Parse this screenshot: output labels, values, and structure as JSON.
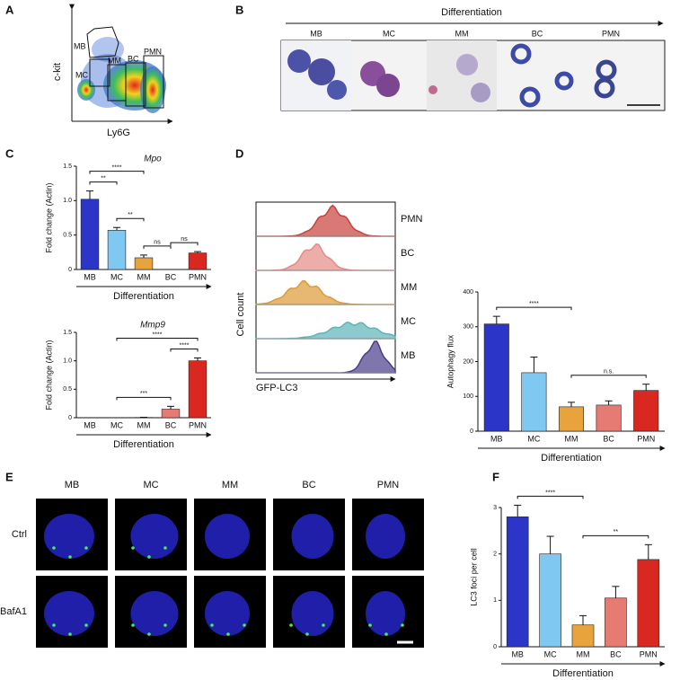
{
  "panel_labels": [
    "A",
    "B",
    "C",
    "D",
    "E",
    "F"
  ],
  "flow": {
    "y_label": "c-kit",
    "x_label": "Ly6G",
    "gates": [
      "MB",
      "MC",
      "MM",
      "BC",
      "PMN"
    ]
  },
  "micrographs": {
    "arrow_label": "Differentiation",
    "cells": [
      "MB",
      "MC",
      "MM",
      "BC",
      "PMN"
    ]
  },
  "histograms": {
    "y_label": "Cell count",
    "x_label": "GFP-LC3",
    "populations": [
      "PMN",
      "BC",
      "MM",
      "MC",
      "MB"
    ],
    "colors": [
      "#c9403a",
      "#e58a84",
      "#dc9a35",
      "#5cb4b8",
      "#4a3c8c"
    ]
  },
  "microscopy": {
    "columns": [
      "MB",
      "MC",
      "MM",
      "BC",
      "PMN"
    ],
    "rows": [
      "Ctrl",
      "BafA1"
    ]
  },
  "chart_data": [
    {
      "type": "bar",
      "title": "Mpo",
      "y_label": "Fold change (Actin)",
      "x_label": "Differentiation",
      "categories": [
        "MB",
        "MC",
        "MM",
        "BC",
        "PMN"
      ],
      "values": [
        1.02,
        0.57,
        0.17,
        0,
        0.24
      ],
      "errors": [
        0.12,
        0.04,
        0.04,
        0,
        0.02
      ],
      "colors": [
        "#2b35c7",
        "#7ec8f2",
        "#e8a33c",
        "#e57b73",
        "#d9281f"
      ],
      "ylim": [
        0,
        1.5
      ],
      "yticks": [
        0,
        0.5,
        {
          "value": 1,
          "label": "1.0"
        },
        1.5
      ],
      "significance": [
        {
          "from": 0,
          "to": 1,
          "label": "**"
        },
        {
          "from": 1,
          "to": 2,
          "label": "**"
        },
        {
          "from": 2,
          "to": 3,
          "label": "ns"
        },
        {
          "from": 3,
          "to": 4,
          "label": "ns"
        },
        {
          "from": 0,
          "to": 2,
          "label": "****"
        }
      ]
    },
    {
      "type": "bar",
      "title": "Mmp9",
      "y_label": "Fold change (Actin)",
      "x_label": "Differentiation",
      "categories": [
        "MB",
        "MC",
        "MM",
        "BC",
        "PMN"
      ],
      "values": [
        0,
        0,
        0.005,
        0.15,
        1.0
      ],
      "errors": [
        0,
        0,
        0.003,
        0.05,
        0.05
      ],
      "colors": [
        "#2b35c7",
        "#7ec8f2",
        "#e8a33c",
        "#e57b73",
        "#d9281f"
      ],
      "ylim": [
        0,
        1.5
      ],
      "yticks": [
        0,
        0.5,
        {
          "value": 1,
          "label": "1.0"
        },
        1.5
      ],
      "significance": [
        {
          "from": 3,
          "to": 4,
          "label": "****"
        },
        {
          "from": 1,
          "to": 3,
          "label": "***"
        },
        {
          "from": 1,
          "to": 4,
          "label": "****"
        }
      ]
    },
    {
      "type": "bar",
      "y_label": "Autophagy flux",
      "x_label": "Differentiation",
      "categories": [
        "MB",
        "MC",
        "MM",
        "BC",
        "PMN"
      ],
      "values": [
        308,
        168,
        70,
        75,
        117
      ],
      "errors": [
        22,
        45,
        13,
        12,
        18
      ],
      "colors": [
        "#2b35c7",
        "#7ec8f2",
        "#e8a33c",
        "#e57b73",
        "#d9281f"
      ],
      "ylim": [
        0,
        400
      ],
      "yticks": [
        0,
        100,
        200,
        300,
        400
      ],
      "significance": [
        {
          "from": 0,
          "to": 2,
          "label": "****"
        },
        {
          "from": 2,
          "to": 4,
          "label": "n.s."
        }
      ]
    },
    {
      "type": "bar",
      "y_label": "LC3 foci per cell",
      "x_label": "Differentiation",
      "categories": [
        "MB",
        "MC",
        "MM",
        "BC",
        "PMN"
      ],
      "values": [
        2.8,
        2.0,
        0.47,
        1.05,
        1.88
      ],
      "errors": [
        0.25,
        0.38,
        0.2,
        0.25,
        0.32
      ],
      "colors": [
        "#2b35c7",
        "#7ec8f2",
        "#e8a33c",
        "#e57b73",
        "#d9281f"
      ],
      "ylim": [
        0,
        3
      ],
      "yticks": [
        0,
        1,
        2,
        3
      ],
      "significance": [
        {
          "from": 0,
          "to": 2,
          "label": "****"
        },
        {
          "from": 2,
          "to": 4,
          "label": "**"
        }
      ]
    }
  ]
}
